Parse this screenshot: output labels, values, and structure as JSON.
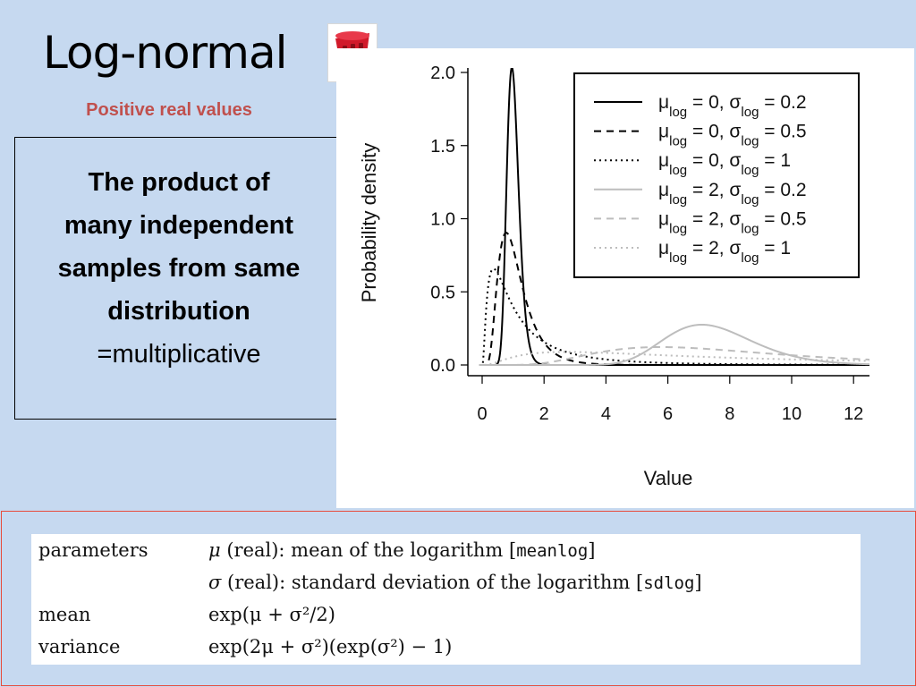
{
  "slide": {
    "title": "Log-normal",
    "subtitle": "Positive real values",
    "text_box": {
      "bold_lines": [
        "The product of",
        "many independent",
        "samples from same",
        "distribution"
      ],
      "normal_line": "=multiplicative"
    }
  },
  "chart_data": {
    "type": "line",
    "xlabel": "Value",
    "ylabel": "Probability density",
    "xlim": [
      0,
      12.5
    ],
    "ylim": [
      0,
      2.0
    ],
    "x_ticks": [
      "0",
      "2",
      "4",
      "6",
      "8",
      "10",
      "12"
    ],
    "y_ticks": [
      "0.0",
      "0.5",
      "1.0",
      "1.5",
      "2.0"
    ],
    "legend_position": "top-right",
    "series": [
      {
        "name": "μlog = 0, σlog = 0.2",
        "meanlog": 0,
        "sdlog": 0.2,
        "color": "#000000",
        "dash": "solid"
      },
      {
        "name": "μlog = 0, σlog = 0.5",
        "meanlog": 0,
        "sdlog": 0.5,
        "color": "#000000",
        "dash": "dashed"
      },
      {
        "name": "μlog = 0, σlog = 1",
        "meanlog": 0,
        "sdlog": 1,
        "color": "#000000",
        "dash": "dotted"
      },
      {
        "name": "μlog = 2, σlog = 0.2",
        "meanlog": 2,
        "sdlog": 0.2,
        "color": "#bdbdbd",
        "dash": "solid"
      },
      {
        "name": "μlog = 2, σlog = 0.5",
        "meanlog": 2,
        "sdlog": 0.5,
        "color": "#bdbdbd",
        "dash": "dashed"
      },
      {
        "name": "μlog = 2, σlog = 1",
        "meanlog": 2,
        "sdlog": 1,
        "color": "#bdbdbd",
        "dash": "dotted"
      }
    ],
    "legend": [
      {
        "mu": "μ",
        "mu_sub": "log",
        "mu_val": " = 0, ",
        "sigma": "σ",
        "sigma_sub": "log",
        "sigma_val": " = 0.2"
      },
      {
        "mu": "μ",
        "mu_sub": "log",
        "mu_val": " = 0, ",
        "sigma": "σ",
        "sigma_sub": "log",
        "sigma_val": " = 0.5"
      },
      {
        "mu": "μ",
        "mu_sub": "log",
        "mu_val": " = 0, ",
        "sigma": "σ",
        "sigma_sub": "log",
        "sigma_val": " = 1"
      },
      {
        "mu": "μ",
        "mu_sub": "log",
        "mu_val": " = 2, ",
        "sigma": "σ",
        "sigma_sub": "log",
        "sigma_val": " = 0.2"
      },
      {
        "mu": "μ",
        "mu_sub": "log",
        "mu_val": " = 2, ",
        "sigma": "σ",
        "sigma_sub": "log",
        "sigma_val": " = 0.5"
      },
      {
        "mu": "μ",
        "mu_sub": "log",
        "mu_val": " = 2, ",
        "sigma": "σ",
        "sigma_sub": "log",
        "sigma_val": " = 1"
      }
    ]
  },
  "formulas": {
    "parameters_label": "parameters",
    "mu_param": {
      "sym": "μ",
      "desc": " (real): mean of the logarithm [",
      "code": "meanlog",
      "close": "]"
    },
    "sigma_param": {
      "sym": "σ",
      "desc": " (real): standard deviation of the logarithm [",
      "code": "sdlog",
      "close": "]"
    },
    "mean_label": "mean",
    "mean_expr": "exp(μ + σ²/2)",
    "variance_label": "variance",
    "variance_expr": "exp(2μ + σ²)(exp(σ²) − 1)"
  },
  "icons": {
    "thumbnail": "red-basket-icon"
  },
  "colors": {
    "background": "#c6d9f0",
    "subtitle": "#c0504d",
    "formula_border": "#e74c3c"
  }
}
